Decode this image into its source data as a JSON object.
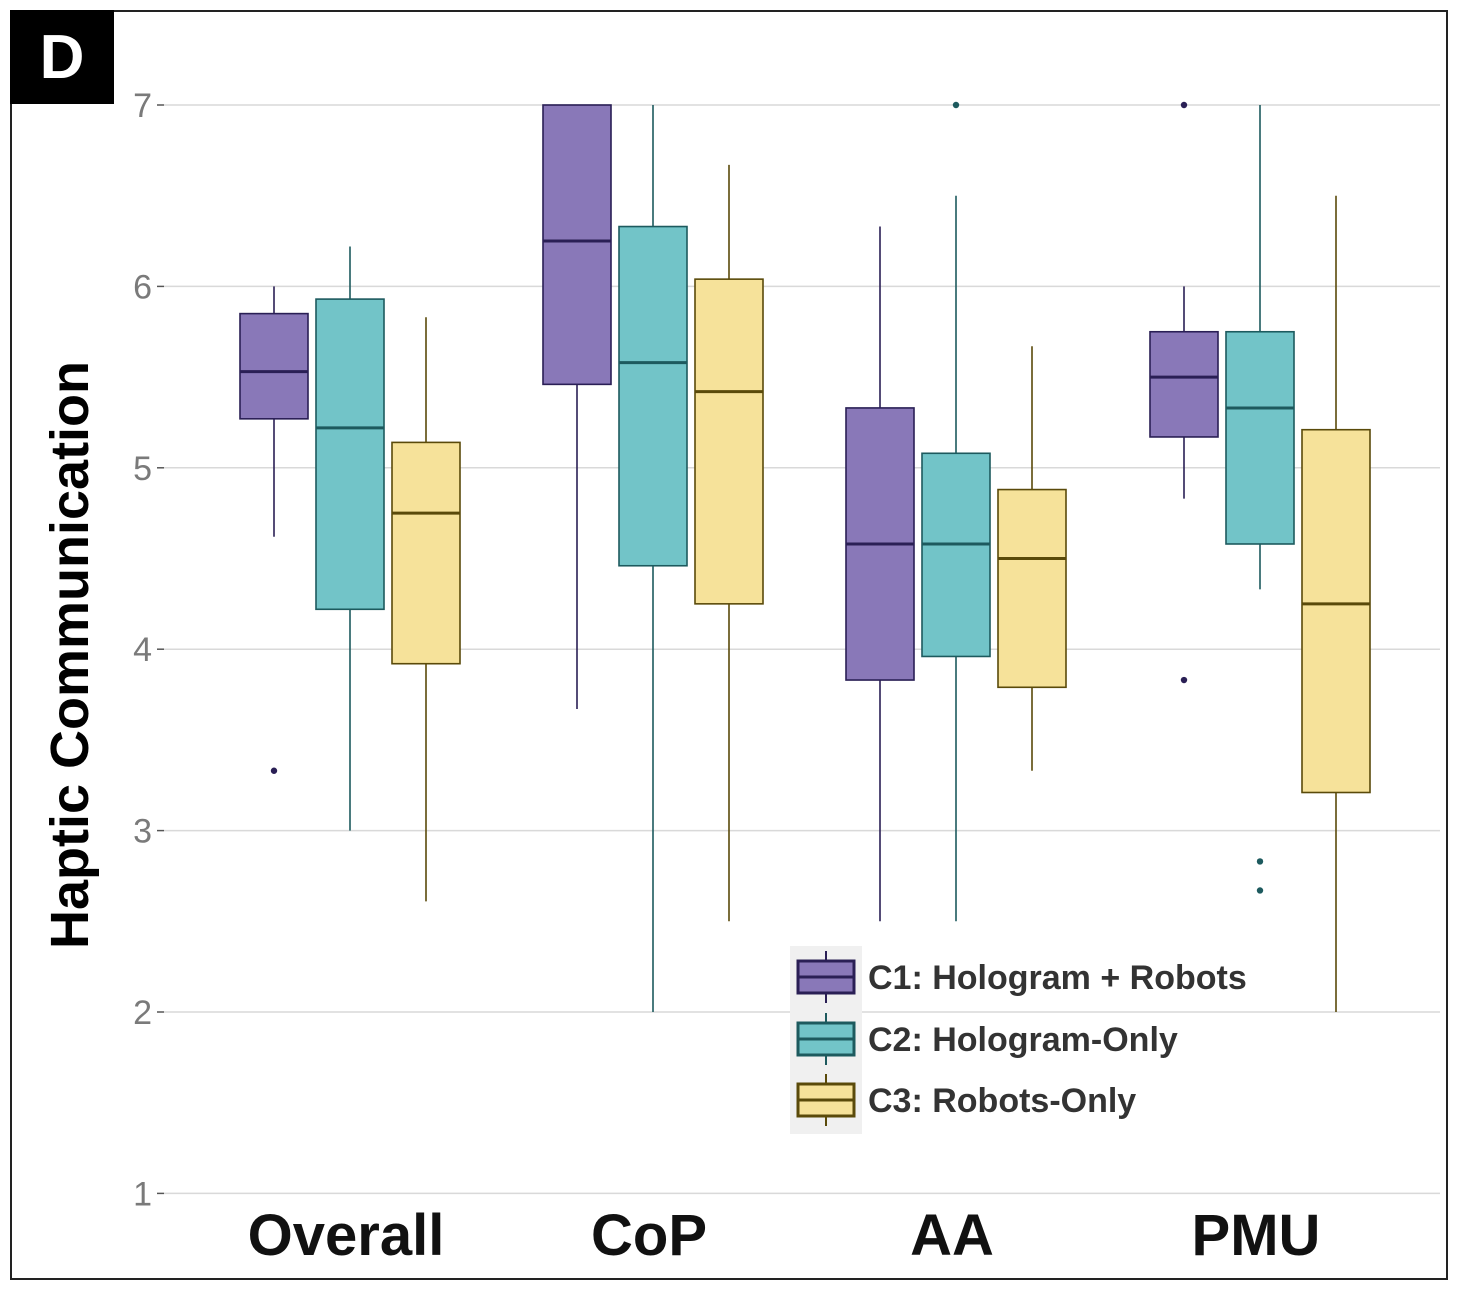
{
  "panel_label": "D",
  "colors": {
    "C1": {
      "fill": "#8978b8",
      "stroke": "#2a1f55"
    },
    "C2": {
      "fill": "#72c4c8",
      "stroke": "#1d5a5e"
    },
    "C3": {
      "fill": "#f6e29a",
      "stroke": "#5a4a0a"
    },
    "grid": "#d9d9d9",
    "legend_bg": "#f0f0f0"
  },
  "chart_data": {
    "type": "boxplot",
    "title": "",
    "xlabel": "",
    "ylabel": "Haptic Communication",
    "ylim": [
      1,
      7.5
    ],
    "yticks": [
      1,
      2,
      3,
      4,
      5,
      6,
      7
    ],
    "categories": [
      "Overall",
      "CoP",
      "AA",
      "PMU"
    ],
    "series": [
      {
        "key": "C1",
        "name": "C1: Hologram + Robots",
        "boxes": [
          {
            "min": 4.62,
            "q1": 5.27,
            "median": 5.53,
            "q3": 5.85,
            "max": 6.0,
            "outliers": [
              3.33
            ]
          },
          {
            "min": 3.67,
            "q1": 5.46,
            "median": 6.25,
            "q3": 7.0,
            "max": 7.0,
            "outliers": []
          },
          {
            "min": 2.5,
            "q1": 3.83,
            "median": 4.58,
            "q3": 5.33,
            "max": 6.33,
            "outliers": []
          },
          {
            "min": 4.83,
            "q1": 5.17,
            "median": 5.5,
            "q3": 5.75,
            "max": 6.0,
            "outliers": [
              7.0,
              3.83
            ]
          }
        ]
      },
      {
        "key": "C2",
        "name": "C2: Hologram-Only",
        "boxes": [
          {
            "min": 3.0,
            "q1": 4.22,
            "median": 5.22,
            "q3": 5.93,
            "max": 6.22,
            "outliers": []
          },
          {
            "min": 2.0,
            "q1": 4.46,
            "median": 5.58,
            "q3": 6.33,
            "max": 7.0,
            "outliers": []
          },
          {
            "min": 2.5,
            "q1": 3.96,
            "median": 4.58,
            "q3": 5.08,
            "max": 6.5,
            "outliers": [
              7.0
            ]
          },
          {
            "min": 4.33,
            "q1": 4.58,
            "median": 5.33,
            "q3": 5.75,
            "max": 7.0,
            "outliers": [
              2.83,
              2.67
            ]
          }
        ]
      },
      {
        "key": "C3",
        "name": "C3: Robots-Only",
        "boxes": [
          {
            "min": 2.61,
            "q1": 3.92,
            "median": 4.75,
            "q3": 5.14,
            "max": 5.83,
            "outliers": []
          },
          {
            "min": 2.5,
            "q1": 4.25,
            "median": 5.42,
            "q3": 6.04,
            "max": 6.67,
            "outliers": []
          },
          {
            "min": 3.33,
            "q1": 3.79,
            "median": 4.5,
            "q3": 4.88,
            "max": 5.67,
            "outliers": []
          },
          {
            "min": 2.0,
            "q1": 3.21,
            "median": 4.25,
            "q3": 5.21,
            "max": 6.5,
            "outliers": []
          }
        ]
      }
    ],
    "legend_position": "bottom-right"
  }
}
